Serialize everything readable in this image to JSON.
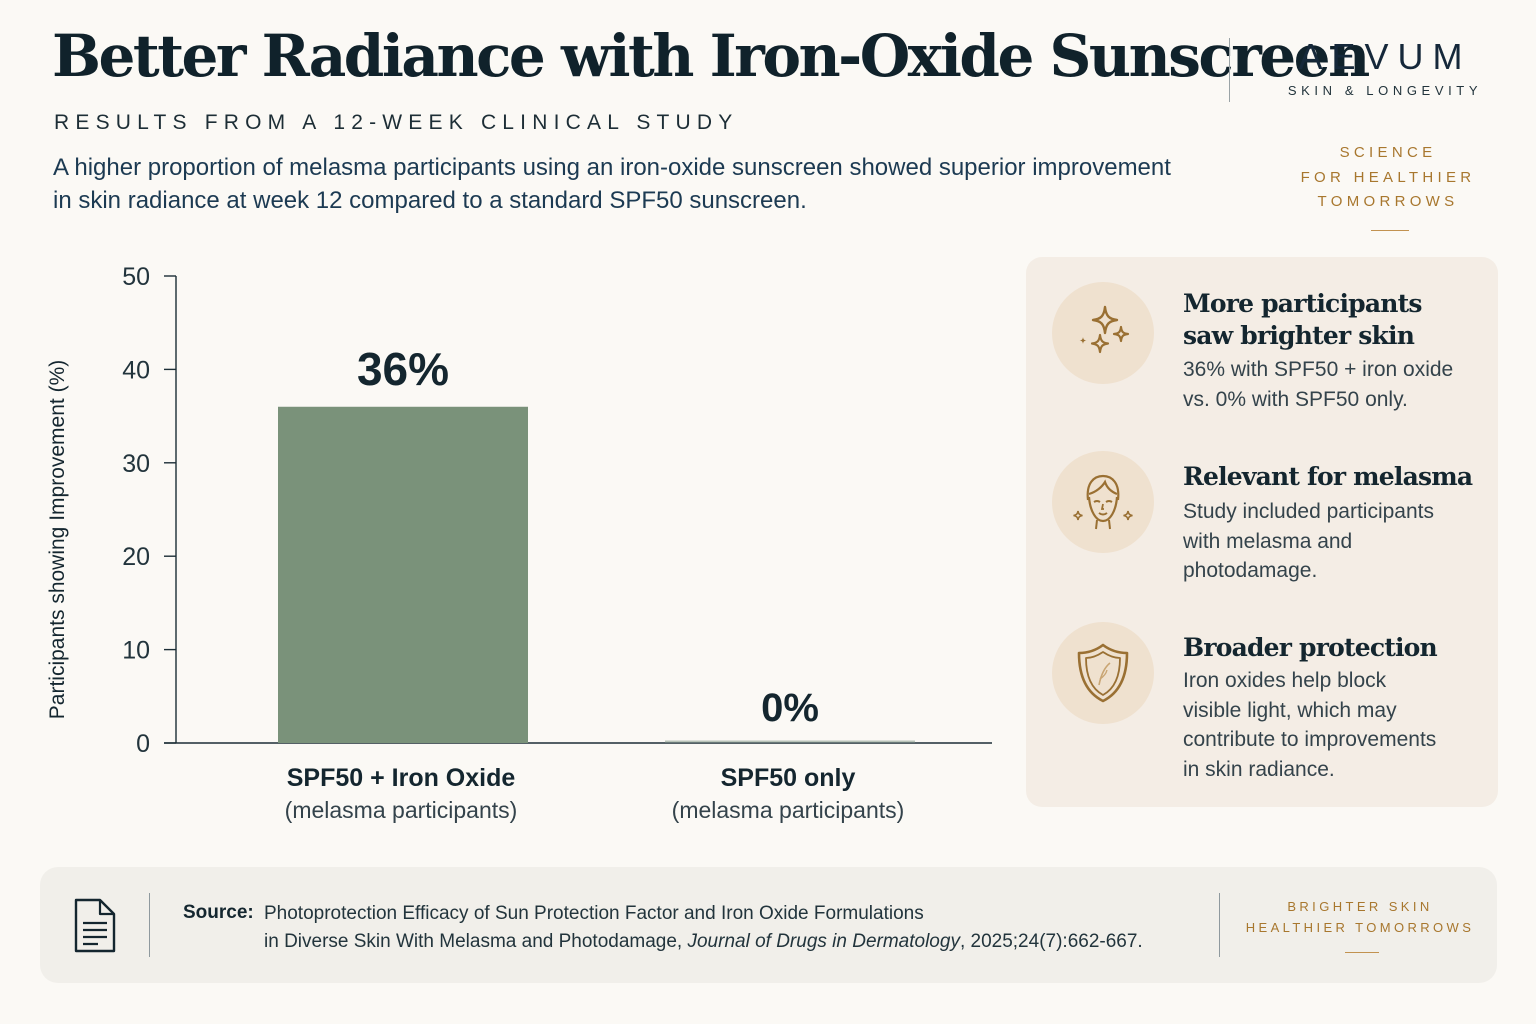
{
  "header": {
    "title": "Better Radiance with Iron-Oxide Sunscreen",
    "subtitle": "RESULTS FROM A 12-WEEK CLINICAL STUDY",
    "description": "A higher proportion of melasma participants using an iron-oxide sunscreen showed superior improvement in skin radiance at week 12 compared to a standard SPF50 sunscreen."
  },
  "brand": {
    "name": "AEVUM",
    "subtitle": "SKIN & LONGEVITY",
    "tagline": [
      "SCIENCE",
      "FOR HEALTHIER",
      "TOMORROWS"
    ]
  },
  "chart_data": {
    "type": "bar",
    "title": "",
    "xlabel": "",
    "ylabel": "Participants showing Improvement (%)",
    "ylim": [
      0,
      50
    ],
    "yticks": [
      0,
      10,
      20,
      30,
      40,
      50
    ],
    "categories": [
      {
        "label": "SPF50 + Iron Oxide",
        "sublabel": "(melasma participants)"
      },
      {
        "label": "SPF50 only",
        "sublabel": "(melasma participants)"
      }
    ],
    "values": [
      36,
      0
    ],
    "data_labels": [
      "36%",
      "0%"
    ],
    "grid": false,
    "legend": "none",
    "colors": {
      "bar": "#7a927a",
      "axis": "#1c2e36",
      "text": "#14262f"
    }
  },
  "features": [
    {
      "icon": "sparkles-icon",
      "title_lines": [
        "More participants",
        "saw brighter skin"
      ],
      "text_lines": [
        "36% with SPF50 + iron oxide",
        "vs. 0% with SPF50 only."
      ]
    },
    {
      "icon": "face-icon",
      "title_lines": [
        "Relevant for melasma"
      ],
      "text_lines": [
        "Study included participants",
        "with melasma and",
        "photodamage."
      ]
    },
    {
      "icon": "shield-icon",
      "title_lines": [
        "Broader protection"
      ],
      "text_lines": [
        "Iron oxides help block",
        "visible light, which may",
        "contribute to improvements",
        "in skin radiance."
      ]
    }
  ],
  "footer": {
    "source_label": "Source:",
    "source_line1": "Photoprotection Efficacy of Sun Protection Factor and Iron Oxide Formulations",
    "source_line2_pre": "in Diverse Skin With Melasma and Photodamage, ",
    "source_journal": "Journal of Drugs in Dermatology",
    "source_line2_post": ", 2025;24(7):662-667.",
    "tagline": [
      "BRIGHTER SKIN",
      "HEALTHIER TOMORROWS"
    ]
  },
  "colors": {
    "accent": "#a8772e",
    "panel": "#f4ede5",
    "icon_bg": "#efe1cf",
    "icon_stroke": "#9a7033"
  }
}
